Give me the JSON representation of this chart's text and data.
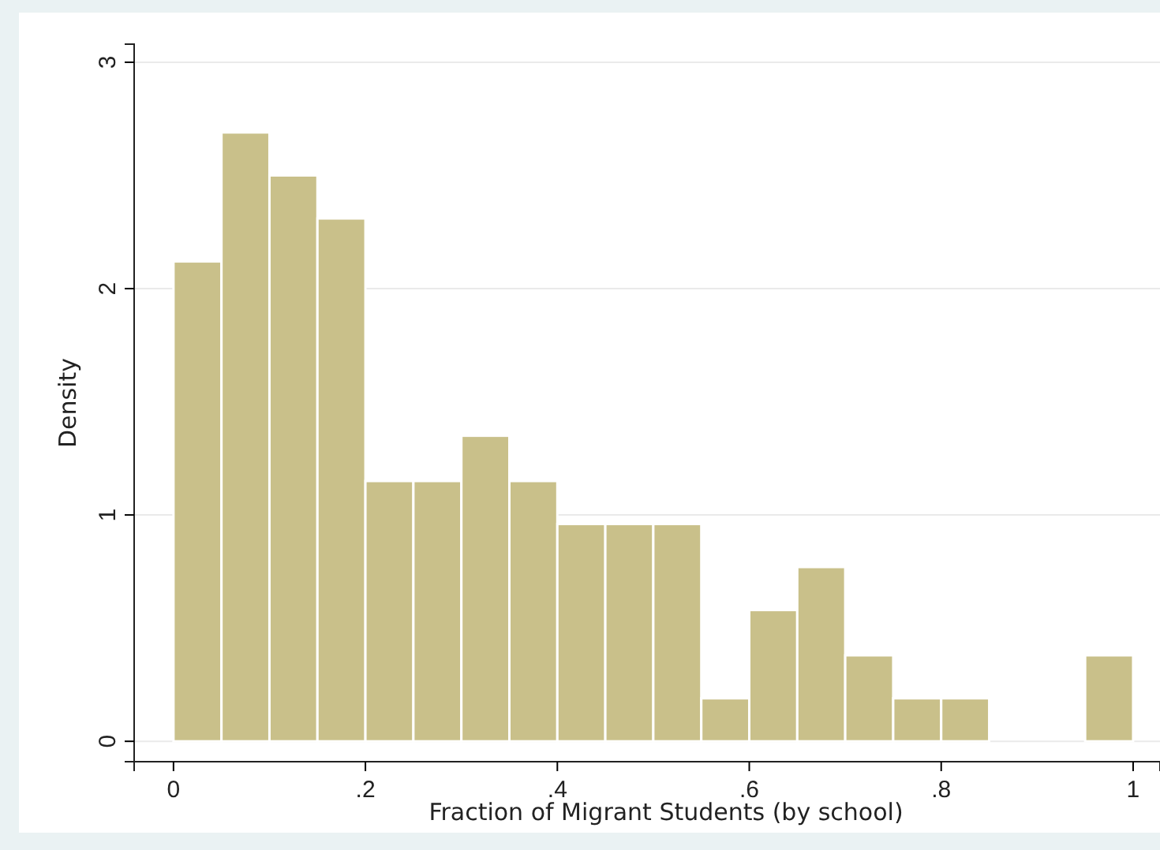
{
  "chart_data": {
    "type": "histogram",
    "xlabel": "Fraction of Migrant Students (by school)",
    "ylabel": "Density",
    "bins": [
      0,
      0.05,
      0.1,
      0.15,
      0.2,
      0.25,
      0.3,
      0.35,
      0.4,
      0.45,
      0.5,
      0.55,
      0.6,
      0.65,
      0.7,
      0.75,
      0.8,
      0.85,
      0.9,
      0.95,
      1
    ],
    "values": [
      2.12,
      2.69,
      2.5,
      2.31,
      1.15,
      1.15,
      1.35,
      1.15,
      0.96,
      0.96,
      0.96,
      0.19,
      0.58,
      0.77,
      0.38,
      0.19,
      0.19,
      0,
      0,
      0.38
    ],
    "color": "#c9c08a",
    "xlim": [
      -0.041,
      1.028
    ],
    "ylim": [
      -0.09,
      3.08
    ],
    "xticks": [
      0,
      {
        "value": 0.2,
        "label": ".2"
      },
      {
        "value": 0.4,
        "label": ".4"
      },
      {
        "value": 0.6,
        "label": ".6"
      },
      {
        "value": 0.8,
        "label": ".8"
      },
      1
    ],
    "yticks": [
      0,
      1,
      2,
      3
    ],
    "grid": "y"
  }
}
